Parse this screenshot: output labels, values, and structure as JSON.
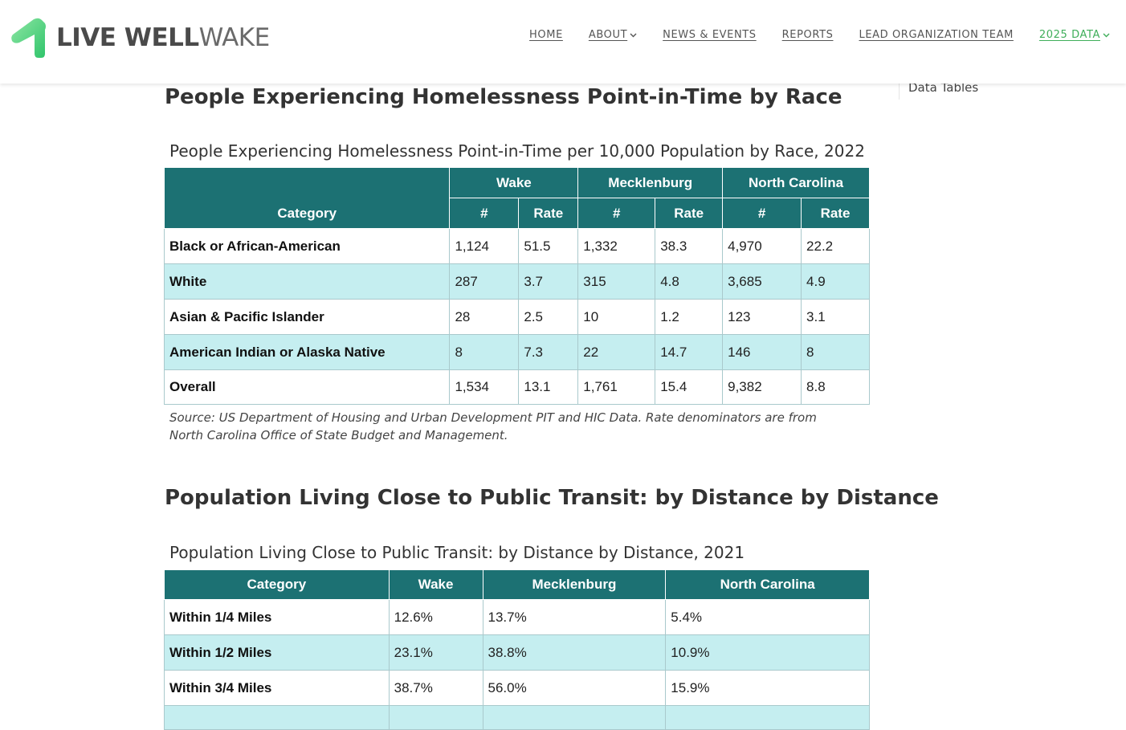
{
  "header": {
    "logo": {
      "bold": "LIVE WELL",
      "light": "WAKE",
      "icon": "live-well-wake-logo-icon"
    },
    "nav": [
      {
        "label": "HOME",
        "dropdown": false,
        "active": false
      },
      {
        "label": "ABOUT",
        "dropdown": true,
        "active": false
      },
      {
        "label": "NEWS & EVENTS",
        "dropdown": false,
        "active": false
      },
      {
        "label": "REPORTS",
        "dropdown": false,
        "active": false
      },
      {
        "label": "LEAD ORGANIZATION TEAM",
        "dropdown": false,
        "active": false
      },
      {
        "label": "2025 DATA",
        "dropdown": true,
        "active": true
      }
    ]
  },
  "sidebar": {
    "link": "Data Tables"
  },
  "section1": {
    "title": "People Experiencing Homelessness Point-in-Time by Race",
    "caption": "People Experiencing Homelessness Point-in-Time per 10,000 Population by Race, 2022",
    "header": {
      "category": "Category",
      "groups": [
        "Wake",
        "Mecklenburg",
        "North Carolina"
      ],
      "sub": [
        "#",
        "Rate",
        "#",
        "Rate",
        "#",
        "Rate"
      ]
    },
    "rows": [
      {
        "category": "Black or African-American",
        "values": [
          "1,124",
          "51.5",
          "1,332",
          "38.3",
          "4,970",
          "22.2"
        ]
      },
      {
        "category": "White",
        "values": [
          "287",
          "3.7",
          "315",
          "4.8",
          "3,685",
          "4.9"
        ]
      },
      {
        "category": "Asian & Pacific Islander",
        "values": [
          "28",
          "2.5",
          "10",
          "1.2",
          "123",
          "3.1"
        ]
      },
      {
        "category": "American Indian or Alaska Native",
        "values": [
          "8",
          "7.3",
          "22",
          "14.7",
          "146",
          "8"
        ]
      },
      {
        "category": "Overall",
        "values": [
          "1,534",
          "13.1",
          "1,761",
          "15.4",
          "9,382",
          "8.8"
        ]
      }
    ],
    "source": "Source: US Department of Housing and Urban Development PIT and HIC Data. Rate denominators are from North Carolina Office of State Budget and Management."
  },
  "section2": {
    "title": "Population Living Close to Public Transit: by Distance by Distance",
    "caption": "Population Living Close to Public Transit: by Distance by Distance, 2021",
    "header": [
      "Category",
      "Wake",
      "Mecklenburg",
      "North Carolina"
    ],
    "rows": [
      {
        "category": "Within 1/4 Miles",
        "values": [
          "12.6%",
          "13.7%",
          "5.4%"
        ]
      },
      {
        "category": "Within 1/2 Miles",
        "values": [
          "23.1%",
          "38.8%",
          "10.9%"
        ]
      },
      {
        "category": "Within 3/4 Miles",
        "values": [
          "38.7%",
          "56.0%",
          "15.9%"
        ]
      },
      {
        "category": "",
        "values": [
          "",
          "",
          ""
        ]
      }
    ]
  },
  "colors": {
    "header_bg": "#1c7173",
    "alt_row": "#c5eef0",
    "nav_active": "#3fae5a",
    "logo_green": "#4cd07a"
  }
}
